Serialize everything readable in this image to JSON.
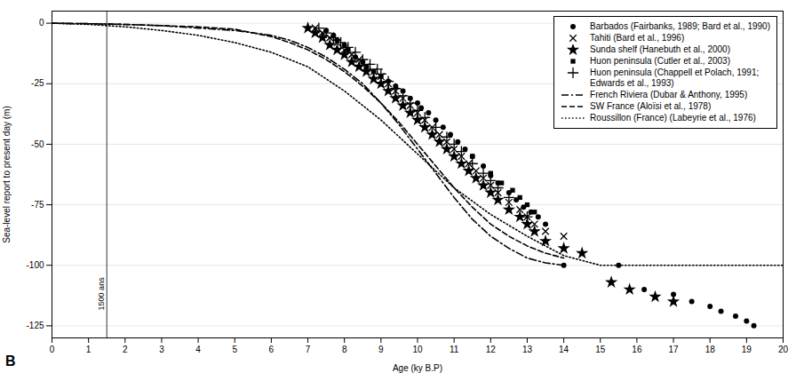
{
  "chart_data": {
    "type": "line",
    "xlabel": "Age (ky B.P)",
    "ylabel": "Sea-level report to present day (m)",
    "xlim": [
      0,
      20
    ],
    "ylim": [
      -130,
      5
    ],
    "xticks": [
      0,
      1,
      2,
      3,
      4,
      5,
      6,
      7,
      8,
      9,
      10,
      11,
      12,
      13,
      14,
      15,
      16,
      17,
      18,
      19,
      20
    ],
    "yticks": [
      0,
      -25,
      -50,
      -75,
      -100,
      -125
    ],
    "grid": "y",
    "legend": "upper right",
    "annotations": [
      {
        "type": "vline",
        "x": 1.5,
        "y": -105,
        "text": "1500 ans"
      },
      {
        "type": "panel",
        "text": "B"
      }
    ],
    "series": [
      {
        "name": "Barbados (Fairbanks, 1989; Bard et al., 1990)",
        "type": "scatter",
        "marker": "circle",
        "color": "black",
        "x": [
          7.5,
          7.7,
          7.8,
          8.0,
          8.1,
          8.3,
          8.5,
          8.6,
          8.8,
          9.0,
          9.2,
          9.4,
          9.6,
          9.8,
          10.0,
          10.1,
          10.3,
          10.5,
          10.7,
          10.9,
          11.1,
          11.3,
          11.5,
          11.8,
          12.0,
          12.2,
          12.5,
          12.7,
          12.9,
          13.1,
          13.3,
          13.5,
          14.0,
          15.5,
          16.2,
          17.0,
          17.5,
          18.0,
          18.3,
          18.7,
          19.0,
          19.2
        ],
        "values": [
          -3,
          -5,
          -7,
          -9,
          -11,
          -14,
          -16,
          -18,
          -20,
          -22,
          -24,
          -26,
          -28,
          -31,
          -33,
          -35,
          -37,
          -40,
          -43,
          -46,
          -49,
          -52,
          -55,
          -59,
          -63,
          -66,
          -70,
          -73,
          -76,
          -78,
          -80,
          -83,
          -100,
          -100,
          -110,
          -112,
          -115,
          -117,
          -119,
          -121,
          -123,
          -125
        ]
      },
      {
        "name": "Tahiti (Bard et al., 1996)",
        "type": "scatter",
        "marker": "x",
        "color": "black",
        "x": [
          7.2,
          7.4,
          7.6,
          7.8,
          8.0,
          8.2,
          8.4,
          8.6,
          8.8,
          9.0,
          9.2,
          9.4,
          9.6,
          9.8,
          10.0,
          10.2,
          10.4,
          10.6,
          10.8,
          11.0,
          11.2,
          11.4,
          11.6,
          11.8,
          12.0,
          12.2,
          12.5,
          12.8,
          13.0,
          13.2,
          13.5,
          14.0
        ],
        "values": [
          -2,
          -4,
          -6,
          -8,
          -11,
          -13,
          -15,
          -18,
          -20,
          -22,
          -25,
          -28,
          -31,
          -34,
          -37,
          -40,
          -43,
          -46,
          -49,
          -52,
          -55,
          -58,
          -61,
          -64,
          -67,
          -70,
          -74,
          -77,
          -80,
          -83,
          -86,
          -88
        ]
      },
      {
        "name": "Sunda shelf (Hanebuth et al., 2000)",
        "type": "scatter",
        "marker": "star",
        "color": "black",
        "x": [
          7.0,
          7.2,
          7.4,
          7.6,
          7.8,
          8.0,
          8.2,
          8.4,
          8.6,
          8.8,
          9.0,
          9.2,
          9.4,
          9.6,
          9.8,
          10.0,
          10.2,
          10.4,
          10.6,
          10.8,
          11.0,
          11.2,
          11.4,
          11.6,
          11.8,
          12.0,
          12.2,
          12.5,
          12.8,
          13.0,
          13.2,
          13.5,
          14.0,
          14.5,
          15.3,
          15.8,
          16.5,
          17.0
        ],
        "values": [
          -2,
          -4,
          -6,
          -9,
          -11,
          -13,
          -16,
          -18,
          -20,
          -23,
          -25,
          -28,
          -31,
          -34,
          -37,
          -40,
          -43,
          -46,
          -49,
          -52,
          -55,
          -58,
          -61,
          -64,
          -67,
          -70,
          -73,
          -77,
          -80,
          -83,
          -86,
          -90,
          -93,
          -95,
          -107,
          -110,
          -113,
          -115
        ]
      },
      {
        "name": "Huon peninsula (Cutler et al., 2003)",
        "type": "scatter",
        "marker": "square",
        "color": "black",
        "x": [
          11.5,
          12.0,
          12.3,
          12.6,
          12.8,
          13.0,
          13.2
        ],
        "values": [
          -55,
          -62,
          -66,
          -69,
          -72,
          -75,
          -78
        ]
      },
      {
        "name": "Huon peninsula (Chappell et Polach, 1991;\nEdwards et al., 1993)",
        "type": "scatter",
        "marker": "plus",
        "color": "black",
        "x": [
          7.3,
          7.5,
          7.7,
          7.9,
          8.1,
          8.3,
          8.5,
          8.7,
          8.9,
          9.0,
          9.2,
          9.4,
          9.6,
          9.8,
          10.0,
          10.2,
          10.5,
          10.8,
          11.0,
          11.2,
          11.5,
          11.8,
          12.0,
          12.2,
          12.5,
          13.0
        ],
        "values": [
          -2,
          -4,
          -6,
          -8,
          -10,
          -12,
          -15,
          -17,
          -19,
          -21,
          -24,
          -27,
          -30,
          -33,
          -36,
          -39,
          -43,
          -47,
          -50,
          -53,
          -58,
          -62,
          -65,
          -68,
          -72,
          -80
        ]
      },
      {
        "name": "French Riviera (Dubar & Anthony, 1995)",
        "type": "line",
        "line_style": "dashdot",
        "color": "black",
        "x": [
          0,
          1,
          2,
          3,
          4,
          5,
          6,
          6.5,
          7,
          7.5,
          8,
          8.5,
          9,
          9.5,
          10,
          10.5,
          11,
          11.5,
          12,
          12.5,
          13,
          13.5,
          14
        ],
        "values": [
          0,
          -0.2,
          -0.5,
          -1,
          -2,
          -3,
          -5,
          -7,
          -10,
          -14,
          -19,
          -25,
          -33,
          -42,
          -52,
          -62,
          -72,
          -81,
          -88,
          -93,
          -97,
          -99,
          -100
        ]
      },
      {
        "name": "SW France (Aloïsi et al., 1978)",
        "type": "line",
        "line_style": "dashed",
        "color": "black",
        "x": [
          0,
          1,
          2,
          3,
          4,
          5,
          5.5,
          6,
          6.5,
          7,
          7.5,
          8,
          8.5,
          9,
          9.5,
          10,
          10.5,
          11,
          11.5,
          12,
          12.5,
          13,
          13.5,
          14
        ],
        "values": [
          0,
          -0.2,
          -0.5,
          -1,
          -1.5,
          -2.5,
          -4,
          -5.5,
          -8,
          -11,
          -15,
          -20,
          -26,
          -33,
          -41,
          -50,
          -59,
          -68,
          -76,
          -83,
          -88,
          -92,
          -95,
          -97
        ]
      },
      {
        "name": "Roussillon (France) (Labeyrie et al., 1976)",
        "type": "line",
        "line_style": "dotted",
        "color": "black",
        "x": [
          0,
          1,
          2,
          3,
          4,
          5,
          6,
          7,
          8,
          9,
          10,
          11,
          12,
          13,
          14,
          15,
          16,
          17,
          18,
          19,
          20
        ],
        "values": [
          0,
          -0.5,
          -1.5,
          -3,
          -5,
          -8,
          -12,
          -18,
          -28,
          -40,
          -54,
          -68,
          -79,
          -88,
          -96,
          -100,
          -100,
          -100,
          -100,
          -100,
          -100
        ]
      }
    ]
  }
}
